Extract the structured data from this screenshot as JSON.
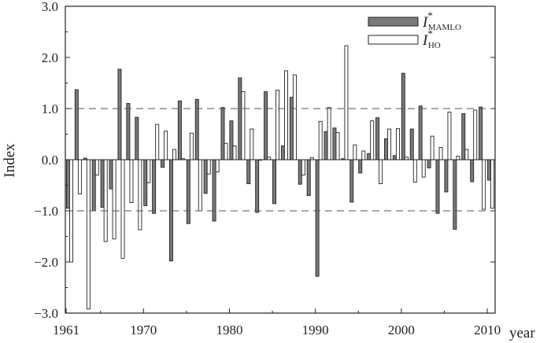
{
  "chart_data": {
    "type": "bar",
    "xlabel": "year",
    "ylabel": "Index",
    "ylim": [
      -3.0,
      3.0
    ],
    "xlim": [
      1961,
      2010
    ],
    "x_ticks": [
      1961,
      1970,
      1980,
      1990,
      2000,
      2010
    ],
    "y_ticks": [
      -3.0,
      -2.0,
      -1.0,
      0.0,
      1.0,
      2.0,
      3.0
    ],
    "y_tick_labels": [
      "−3.0",
      "−2.0",
      "−1.0",
      "0.0",
      "1.0",
      "2.0",
      "3.0"
    ],
    "reference_lines": [
      1.0,
      -1.0
    ],
    "grid": false,
    "legend_position": "top-right",
    "years": [
      1961,
      1962,
      1963,
      1964,
      1965,
      1966,
      1967,
      1968,
      1969,
      1970,
      1971,
      1972,
      1973,
      1974,
      1975,
      1976,
      1977,
      1978,
      1979,
      1980,
      1981,
      1982,
      1983,
      1984,
      1985,
      1986,
      1987,
      1988,
      1989,
      1990,
      1991,
      1992,
      1993,
      1994,
      1995,
      1996,
      1997,
      1998,
      1999,
      2000,
      2001,
      2002,
      2003,
      2004,
      2005,
      2006,
      2007,
      2008,
      2009,
      2010
    ],
    "series": [
      {
        "label_main": "I",
        "label_sup": "*",
        "label_sub": "MAMLO",
        "color": "#7a7a7a",
        "values": [
          -0.95,
          1.37,
          0.03,
          -1.0,
          -0.93,
          -0.57,
          1.77,
          1.1,
          0.83,
          -0.9,
          -1.05,
          -0.15,
          -1.98,
          1.15,
          -1.25,
          1.18,
          -0.66,
          -1.2,
          1.02,
          0.76,
          1.6,
          -0.47,
          -1.03,
          1.33,
          -0.86,
          0.27,
          1.22,
          -0.48,
          -0.7,
          -2.28,
          0.55,
          0.62,
          0.02,
          -0.83,
          -0.26,
          0.12,
          0.82,
          0.41,
          0.08,
          1.69,
          0.6,
          1.05,
          -0.16,
          -1.05,
          -0.63,
          -1.36,
          0.9,
          -0.43,
          1.03,
          -0.4
        ]
      },
      {
        "label_main": "I",
        "label_sup": "*",
        "label_sub": "HO",
        "color": "#ffffff",
        "values": [
          -2.0,
          -0.67,
          -2.92,
          -0.3,
          -1.6,
          -1.55,
          -1.93,
          -0.84,
          -1.37,
          -0.45,
          0.69,
          0.56,
          0.2,
          0.02,
          0.52,
          -1.0,
          -0.28,
          -0.24,
          0.32,
          0.27,
          1.33,
          0.6,
          0.0,
          0.05,
          1.36,
          1.74,
          1.66,
          -0.3,
          0.04,
          0.75,
          1.02,
          0.53,
          2.23,
          0.29,
          0.17,
          0.76,
          -0.47,
          0.6,
          0.61,
          0.05,
          -0.44,
          -0.34,
          0.46,
          0.24,
          0.93,
          0.07,
          0.2,
          0.97,
          -0.97,
          -0.95
        ]
      }
    ]
  }
}
